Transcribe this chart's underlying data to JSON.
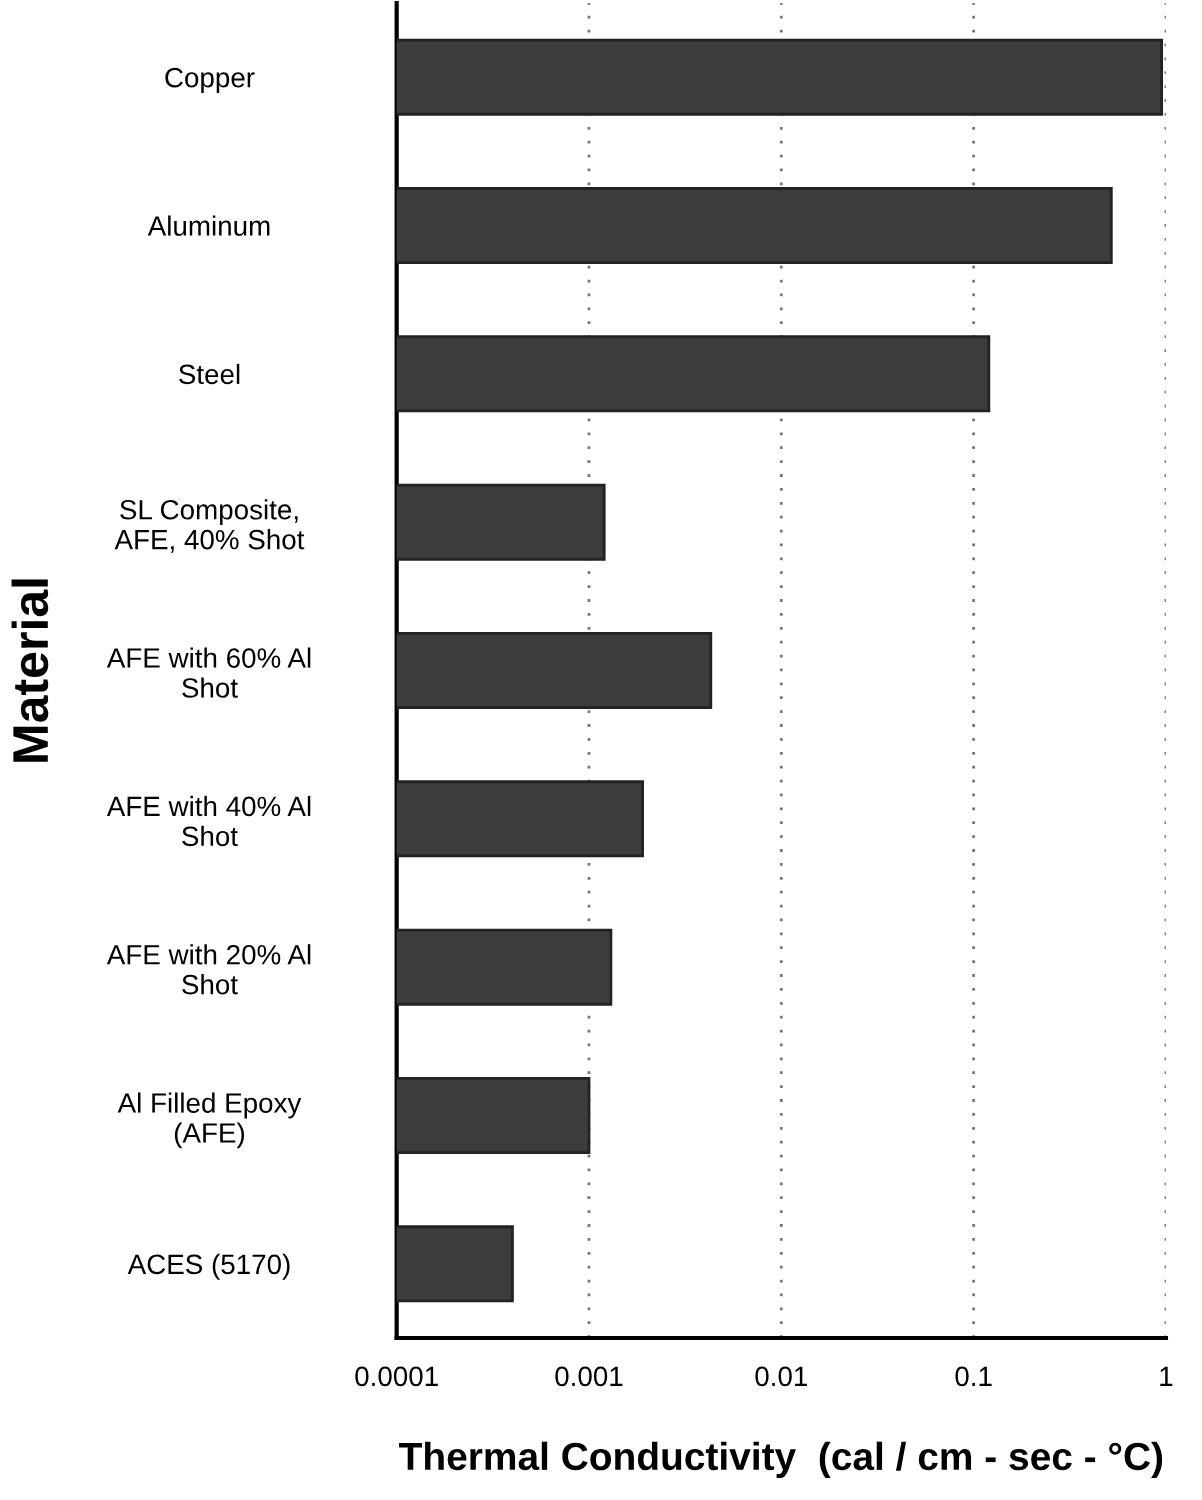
{
  "chart_data": {
    "type": "bar",
    "orientation": "horizontal",
    "log": "x",
    "categories": [
      "Copper",
      "Aluminum",
      "Steel",
      "SL Composite,\nAFE, 40% Shot",
      "AFE with 60% Al\nShot",
      "AFE with 40% Al\nShot",
      "AFE with 20% Al\nShot",
      "Al Filled Epoxy\n(AFE)",
      "ACES (5170)"
    ],
    "values": [
      0.95,
      0.52,
      0.12,
      0.0012,
      0.0043,
      0.0019,
      0.0013,
      0.001,
      0.0004
    ],
    "color": "#3c3c3c",
    "xlim": [
      0.0001,
      1
    ],
    "xticks": [
      0.0001,
      0.001,
      0.01,
      0.1,
      1
    ],
    "xlabel": "Thermal Conductivity  (cal / cm - sec - °C)",
    "ylabel": "Material",
    "grid": "x"
  }
}
